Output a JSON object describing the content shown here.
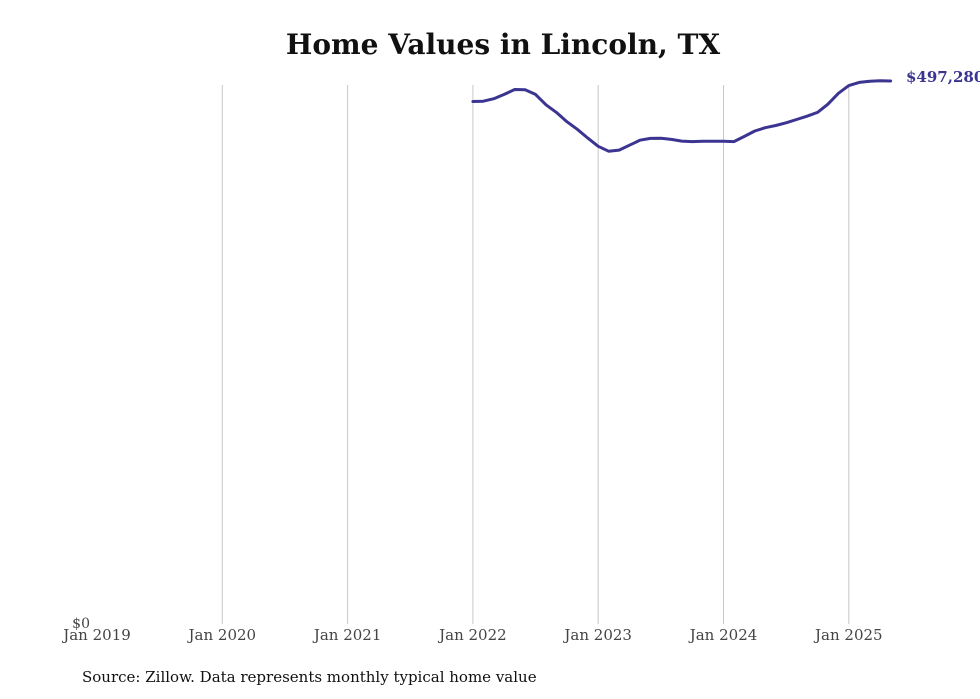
{
  "chart_data": {
    "type": "line",
    "title": "Home Values in Lincoln, TX",
    "xlabel": "",
    "ylabel": "",
    "x_ticks": [
      "Jan 2019",
      "Jan 2020",
      "Jan 2021",
      "Jan 2022",
      "Jan 2023",
      "Jan 2024",
      "Jan 2025"
    ],
    "y_ticks": [
      "$0"
    ],
    "ylim": [
      0,
      500000
    ],
    "xlim": [
      "2019-01",
      "2025-06"
    ],
    "grid": "vertical",
    "line_color": "#3b3491",
    "end_label": "$497,280",
    "series": [
      {
        "x": [
          "2022-01",
          "2022-02",
          "2022-03",
          "2022-04",
          "2022-05",
          "2022-06",
          "2022-07",
          "2022-08",
          "2022-09",
          "2022-10",
          "2022-11",
          "2022-12",
          "2023-01",
          "2023-02",
          "2023-03",
          "2023-04",
          "2023-05",
          "2023-06",
          "2023-07",
          "2023-08",
          "2023-09",
          "2023-10",
          "2023-11",
          "2023-12",
          "2024-01",
          "2024-02",
          "2024-03",
          "2024-04",
          "2024-05",
          "2024-06",
          "2024-07",
          "2024-08",
          "2024-09",
          "2024-10",
          "2024-11",
          "2024-12",
          "2025-01",
          "2025-02",
          "2025-03",
          "2025-04",
          "2025-05"
        ],
        "y": [
          478500,
          478800,
          481000,
          485000,
          489500,
          489200,
          485000,
          475500,
          468500,
          460000,
          453000,
          445000,
          437500,
          433000,
          434000,
          438500,
          443000,
          444700,
          444800,
          443800,
          442200,
          441800,
          442100,
          442100,
          442000,
          441800,
          446500,
          451500,
          454500,
          456500,
          459000,
          462000,
          465000,
          468500,
          476000,
          486000,
          493000,
          496000,
          497000,
          497500,
          497280
        ]
      }
    ]
  },
  "source": "Source: Zillow. Data represents monthly typical home value"
}
